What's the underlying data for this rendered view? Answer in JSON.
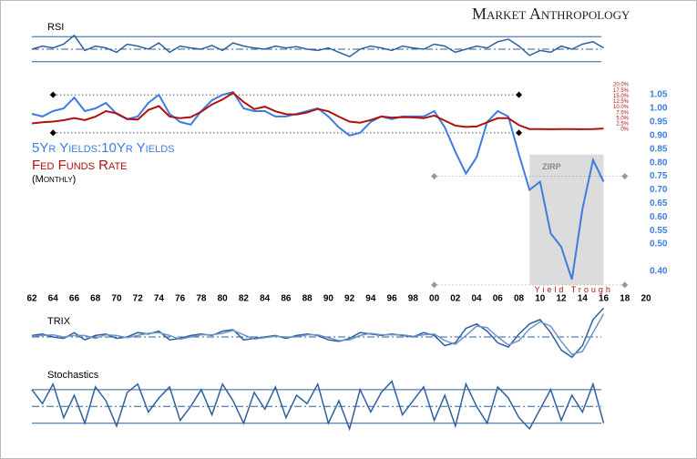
{
  "header": {
    "brand": "Market Anthropology"
  },
  "chart_data": [
    {
      "type": "line",
      "title": "RSI",
      "levels": [
        30,
        50,
        70
      ],
      "ylim": [
        15,
        85
      ],
      "x": [
        1962,
        1963,
        1964,
        1965,
        1966,
        1967,
        1968,
        1969,
        1970,
        1971,
        1972,
        1973,
        1974,
        1975,
        1976,
        1977,
        1978,
        1979,
        1980,
        1981,
        1982,
        1983,
        1984,
        1985,
        1986,
        1987,
        1988,
        1989,
        1990,
        1991,
        1992,
        1993,
        1994,
        1995,
        1996,
        1997,
        1998,
        1999,
        2000,
        2001,
        2002,
        2003,
        2004,
        2005,
        2006,
        2007,
        2008,
        2009,
        2010,
        2011,
        2012,
        2013,
        2014,
        2015,
        2016
      ],
      "series": [
        {
          "color": "#2e5f9e",
          "values": [
            50,
            55,
            52,
            58,
            72,
            48,
            55,
            52,
            45,
            58,
            55,
            50,
            60,
            45,
            55,
            52,
            50,
            56,
            48,
            60,
            55,
            52,
            50,
            55,
            52,
            54,
            50,
            48,
            52,
            45,
            38,
            50,
            55,
            52,
            48,
            55,
            52,
            50,
            58,
            55,
            45,
            50,
            55,
            52,
            62,
            66,
            55,
            40,
            48,
            45,
            55,
            50,
            58,
            62,
            52
          ]
        }
      ]
    },
    {
      "type": "line",
      "subtitle": "(Monthly)",
      "x": [
        1962,
        1963,
        1964,
        1965,
        1966,
        1967,
        1968,
        1969,
        1970,
        1971,
        1972,
        1973,
        1974,
        1975,
        1976,
        1977,
        1978,
        1979,
        1980,
        1981,
        1982,
        1983,
        1984,
        1985,
        1986,
        1987,
        1988,
        1989,
        1990,
        1991,
        1992,
        1993,
        1994,
        1995,
        1996,
        1997,
        1998,
        1999,
        2000,
        2001,
        2002,
        2003,
        2004,
        2005,
        2006,
        2007,
        2008,
        2009,
        2010,
        2011,
        2012,
        2013,
        2014,
        2015,
        2016
      ],
      "series": [
        {
          "name": "5Yr Yields:10Yr Yields",
          "color": "#3b7de0",
          "values": [
            0.98,
            0.97,
            0.99,
            1.0,
            1.04,
            0.99,
            1.0,
            1.02,
            0.98,
            0.96,
            0.97,
            1.02,
            1.05,
            0.98,
            0.95,
            0.94,
            0.99,
            1.03,
            1.05,
            1.06,
            1.0,
            0.99,
            0.99,
            0.97,
            0.97,
            0.98,
            0.99,
            1.0,
            0.97,
            0.93,
            0.9,
            0.91,
            0.95,
            0.97,
            0.96,
            0.97,
            0.97,
            0.97,
            0.99,
            0.93,
            0.84,
            0.76,
            0.82,
            0.95,
            0.99,
            0.97,
            0.83,
            0.7,
            0.73,
            0.54,
            0.49,
            0.37,
            0.63,
            0.81,
            0.73
          ]
        },
        {
          "name": "Fed Funds Rate",
          "color": "#b01010",
          "axis": "y2",
          "values": [
            2.7,
            3.2,
            3.5,
            4.1,
            5.1,
            4.2,
            5.7,
            8.2,
            7.2,
            4.7,
            4.4,
            8.7,
            10.5,
            5.8,
            5.0,
            5.5,
            7.9,
            11.2,
            13.4,
            16.4,
            12.3,
            9.1,
            10.2,
            8.1,
            6.8,
            6.7,
            7.6,
            9.2,
            8.1,
            5.7,
            3.5,
            3.0,
            4.2,
            5.8,
            5.3,
            5.5,
            5.4,
            5.0,
            6.2,
            3.9,
            1.7,
            1.1,
            1.3,
            3.2,
            5.0,
            5.0,
            1.9,
            0.16,
            0.18,
            0.1,
            0.14,
            0.11,
            0.09,
            0.13,
            0.4
          ]
        }
      ],
      "xlim": [
        1962,
        2020
      ],
      "xticks": [
        {
          "value": 1962,
          "label": "62"
        },
        {
          "value": 1964,
          "label": "64"
        },
        {
          "value": 1966,
          "label": "66"
        },
        {
          "value": 1968,
          "label": "68"
        },
        {
          "value": 1970,
          "label": "70"
        },
        {
          "value": 1972,
          "label": "72"
        },
        {
          "value": 1974,
          "label": "74"
        },
        {
          "value": 1976,
          "label": "76"
        },
        {
          "value": 1978,
          "label": "78"
        },
        {
          "value": 1980,
          "label": "80"
        },
        {
          "value": 1982,
          "label": "82"
        },
        {
          "value": 1984,
          "label": "84"
        },
        {
          "value": 1986,
          "label": "86"
        },
        {
          "value": 1988,
          "label": "88"
        },
        {
          "value": 1990,
          "label": "90"
        },
        {
          "value": 1992,
          "label": "92"
        },
        {
          "value": 1994,
          "label": "94"
        },
        {
          "value": 1996,
          "label": "96"
        },
        {
          "value": 1998,
          "label": "98"
        },
        {
          "value": 2000,
          "label": "00"
        },
        {
          "value": 2002,
          "label": "02"
        },
        {
          "value": 2004,
          "label": "04"
        },
        {
          "value": 2006,
          "label": "06"
        },
        {
          "value": 2008,
          "label": "08"
        },
        {
          "value": 2010,
          "label": "10"
        },
        {
          "value": 2012,
          "label": "12"
        },
        {
          "value": 2014,
          "label": "14"
        },
        {
          "value": 2016,
          "label": "16"
        },
        {
          "value": 2018,
          "label": "18"
        },
        {
          "value": 2020,
          "label": "20"
        }
      ],
      "ylim": [
        0.326,
        1.114
      ],
      "yticks": [
        1.05,
        {
          "value": 1,
          "label": "1.00"
        },
        0.95,
        {
          "value": 0.9,
          "label": "0.90"
        },
        0.85,
        {
          "value": 0.8,
          "label": "0.80"
        },
        0.75,
        {
          "value": 0.7,
          "label": "0.70"
        },
        0.65,
        {
          "value": 0.6,
          "label": "0.60"
        },
        0.55,
        {
          "value": 0.5,
          "label": "0.50"
        },
        {
          "value": 0.4,
          "label": "0.40"
        }
      ],
      "y2lim": [
        -72.6,
        23.3
      ],
      "y2ticks": [
        {
          "value": 20,
          "label": "20.0%"
        },
        {
          "value": 17.5,
          "label": "17.5%"
        },
        {
          "value": 15,
          "label": "15.0%"
        },
        {
          "value": 12.5,
          "label": "12.5%"
        },
        {
          "value": 10,
          "label": "10.0%"
        },
        {
          "value": 7.5,
          "label": "7.5%"
        },
        {
          "value": 5,
          "label": "5.0%"
        },
        {
          "value": 2.5,
          "label": "2.5%"
        },
        {
          "value": 0,
          "label": "0%"
        }
      ],
      "region": {
        "label": "ZIRP",
        "x0": 2009,
        "x1": 2016,
        "y0": 0.35,
        "y1": 0.83
      },
      "annotation": "Yield Trough",
      "reference_lines": [
        {
          "y": 1.05,
          "x0": 1964,
          "x1": 2008,
          "color": "#000000"
        },
        {
          "y": 0.91,
          "x0": 1964,
          "x1": 2008,
          "color": "#000000"
        },
        {
          "y": 0.75,
          "x0": 2000,
          "x1": 2018,
          "color": "#999999"
        },
        {
          "y": 0.35,
          "x0": 2000,
          "x1": 2018,
          "color": "#999999"
        }
      ]
    },
    {
      "type": "line",
      "title": "TRIX",
      "levels": [
        0
      ],
      "ylim": [
        -2.2,
        2.2
      ],
      "x": [
        1962,
        1963,
        1964,
        1965,
        1966,
        1967,
        1968,
        1969,
        1970,
        1971,
        1972,
        1973,
        1974,
        1975,
        1976,
        1977,
        1978,
        1979,
        1980,
        1981,
        1982,
        1983,
        1984,
        1985,
        1986,
        1987,
        1988,
        1989,
        1990,
        1991,
        1992,
        1993,
        1994,
        1995,
        1996,
        1997,
        1998,
        1999,
        2000,
        2001,
        2002,
        2003,
        2004,
        2005,
        2006,
        2007,
        2008,
        2009,
        2010,
        2011,
        2012,
        2013,
        2014,
        2015,
        2016
      ],
      "series": [
        {
          "color": "#2e5f9e",
          "values": [
            0.1,
            0.2,
            0,
            -0.1,
            0.3,
            -0.2,
            0.1,
            0.2,
            -0.1,
            0,
            0.3,
            0.2,
            0.4,
            -0.2,
            -0.1,
            0.1,
            0.2,
            0.1,
            0.4,
            0.5,
            -0.2,
            -0.1,
            0,
            0.1,
            -0.1,
            0.1,
            0.2,
            0.1,
            -0.2,
            -0.3,
            -0.1,
            0.3,
            0.2,
            0.1,
            0.2,
            0.1,
            0,
            0.3,
            0.1,
            -0.6,
            -0.4,
            0.6,
            0.9,
            0.4,
            -0.4,
            -0.7,
            0.2,
            0.9,
            1.2,
            0.3,
            -0.9,
            -1.4,
            -0.6,
            1.2,
            2.0
          ]
        },
        {
          "color": "#6f95c4",
          "values": [
            0.05,
            0.1,
            0.15,
            0,
            0.1,
            0.1,
            -0.1,
            0.15,
            0.1,
            -0.05,
            0.1,
            0.25,
            0.3,
            0.1,
            -0.15,
            0,
            0.15,
            0.15,
            0.25,
            0.45,
            0.15,
            -0.15,
            -0.05,
            0.05,
            0,
            0,
            0.15,
            0.15,
            -0.05,
            -0.25,
            -0.2,
            0.1,
            0.25,
            0.15,
            0.15,
            0.15,
            0.05,
            0.15,
            0.2,
            -0.25,
            -0.5,
            0.1,
            0.75,
            0.65,
            0,
            -0.55,
            -0.25,
            0.55,
            1.05,
            0.75,
            -0.3,
            -1.2,
            -1.0,
            0.3,
            1.6
          ]
        }
      ]
    },
    {
      "type": "line",
      "title": "Stochastics",
      "levels": [
        20,
        50,
        80
      ],
      "ylim": [
        -13,
        109
      ],
      "x": [
        1962,
        1963,
        1964,
        1965,
        1966,
        1967,
        1968,
        1969,
        1970,
        1971,
        1972,
        1973,
        1974,
        1975,
        1976,
        1977,
        1978,
        1979,
        1980,
        1981,
        1982,
        1983,
        1984,
        1985,
        1986,
        1987,
        1988,
        1989,
        1990,
        1991,
        1992,
        1993,
        1994,
        1995,
        1996,
        1997,
        1998,
        1999,
        2000,
        2001,
        2002,
        2003,
        2004,
        2005,
        2006,
        2007,
        2008,
        2009,
        2010,
        2011,
        2012,
        2013,
        2014,
        2015,
        2016
      ],
      "series": [
        {
          "color": "#2e5f9e",
          "values": [
            80,
            55,
            90,
            30,
            70,
            20,
            85,
            60,
            15,
            75,
            90,
            40,
            65,
            85,
            25,
            50,
            80,
            35,
            90,
            60,
            20,
            75,
            45,
            85,
            30,
            70,
            55,
            90,
            20,
            60,
            10,
            80,
            40,
            75,
            95,
            35,
            60,
            85,
            25,
            70,
            15,
            90,
            50,
            20,
            85,
            65,
            30,
            10,
            45,
            80,
            25,
            70,
            40,
            90,
            20
          ]
        }
      ]
    }
  ]
}
